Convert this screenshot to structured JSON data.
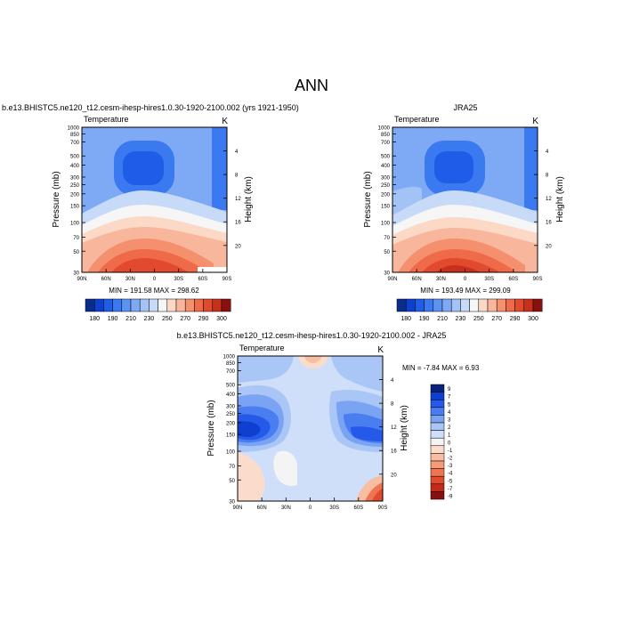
{
  "page": {
    "title": "ANN"
  },
  "legend_colors": {
    "abs": [
      "#0a2c8c",
      "#0f3fd0",
      "#1f5ce8",
      "#3b79f0",
      "#5c92f2",
      "#7ea9f4",
      "#a3c2f6",
      "#c7dbf8",
      "#f6f6f6",
      "#fbd9c6",
      "#f8b79c",
      "#f5906f",
      "#ef6a48",
      "#e24a2e",
      "#c8301e",
      "#8a1010"
    ],
    "diff": [
      "#08237a",
      "#0f3fd0",
      "#2459ea",
      "#4a7df0",
      "#7aa3f3",
      "#a9c6f6",
      "#cfdffa",
      "#f4f4f4",
      "#fbdccb",
      "#f8bea2",
      "#f59b78",
      "#ef7552",
      "#e04a2e",
      "#c22a1a",
      "#8a1010"
    ]
  },
  "chart_data": [
    {
      "type": "heatmap",
      "title": "b.e13.BHISTC5.ne120_t12.cesm-ihesp-hires1.0.30-1920-2100.002 (yrs 1921-1950)",
      "left_string": "Temperature",
      "right_string": "K",
      "xlabel": "",
      "ylabel": "Pressure (mb)",
      "ylabel_right": "Height (km)",
      "x_ticks": [
        "90N",
        "60N",
        "30N",
        "0",
        "30S",
        "60S",
        "90S"
      ],
      "y_ticks": [
        "30",
        "50",
        "70",
        "100",
        "150",
        "200",
        "250",
        "300",
        "400",
        "500",
        "700",
        "850",
        "1000"
      ],
      "y_right_ticks": [
        "4",
        "8",
        "12",
        "16",
        "20"
      ],
      "min_max": "MIN = 191.58   MAX = 298.62",
      "colorbar_labels": [
        "180",
        "190",
        "210",
        "230",
        "250",
        "270",
        "290",
        "300"
      ],
      "ylim": [
        1000,
        30
      ],
      "xlim": [
        90,
        -90
      ]
    },
    {
      "type": "heatmap",
      "title": "JRA25",
      "left_string": "Temperature",
      "right_string": "K",
      "xlabel": "",
      "ylabel": "Pressure (mb)",
      "ylabel_right": "Height (km)",
      "x_ticks": [
        "90N",
        "60N",
        "30N",
        "0",
        "30S",
        "60S",
        "90S"
      ],
      "y_ticks": [
        "30",
        "50",
        "70",
        "100",
        "150",
        "200",
        "250",
        "300",
        "400",
        "500",
        "700",
        "850",
        "1000"
      ],
      "y_right_ticks": [
        "4",
        "8",
        "12",
        "16",
        "20"
      ],
      "min_max": "MIN = 193.49   MAX = 299.09",
      "colorbar_labels": [
        "180",
        "190",
        "210",
        "230",
        "250",
        "270",
        "290",
        "300"
      ],
      "ylim": [
        1000,
        30
      ],
      "xlim": [
        90,
        -90
      ]
    },
    {
      "type": "heatmap",
      "title": "b.e13.BHISTC5.ne120_t12.cesm-ihesp-hires1.0.30-1920-2100.002 - JRA25",
      "left_string": "Temperature",
      "right_string": "K",
      "xlabel": "",
      "ylabel": "Pressure (mb)",
      "ylabel_right": "Height (km)",
      "x_ticks": [
        "90N",
        "60N",
        "30N",
        "0",
        "30S",
        "60S",
        "90S"
      ],
      "y_ticks": [
        "30",
        "50",
        "70",
        "100",
        "150",
        "200",
        "250",
        "300",
        "400",
        "500",
        "700",
        "850",
        "1000"
      ],
      "y_right_ticks": [
        "4",
        "8",
        "12",
        "16",
        "20"
      ],
      "min_max": "MIN =  -7.84   MAX =   6.93",
      "colorbar_labels": [
        "9",
        "7",
        "5",
        "4",
        "3",
        "2",
        "1",
        "0",
        "-1",
        "-2",
        "-3",
        "-4",
        "-5",
        "-7",
        "-9"
      ],
      "ylim": [
        1000,
        30
      ],
      "xlim": [
        90,
        -90
      ]
    }
  ]
}
